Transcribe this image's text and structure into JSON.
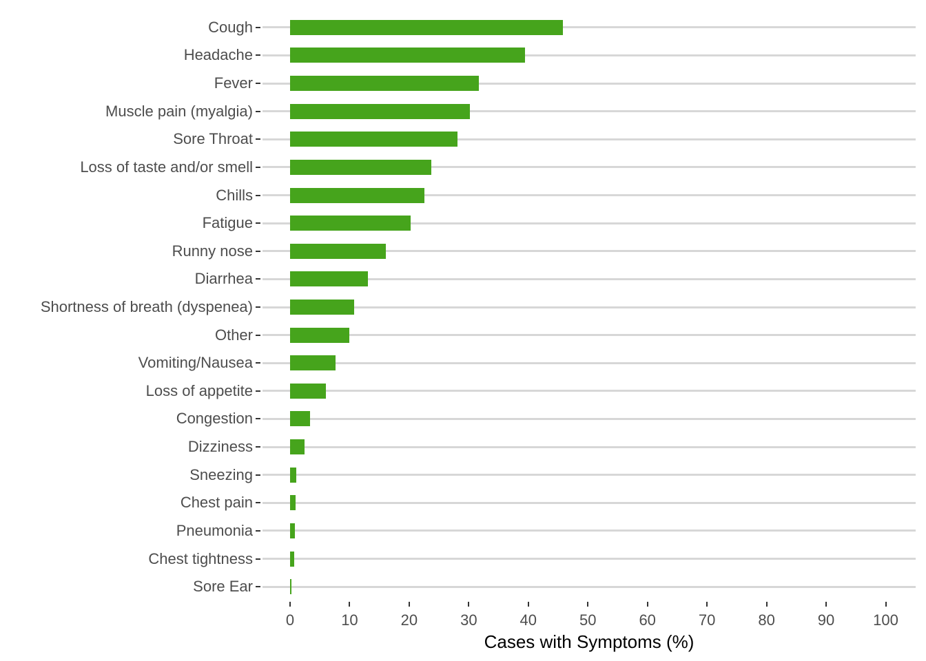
{
  "chart_data": {
    "type": "bar",
    "orientation": "horizontal",
    "title": "",
    "xlabel": "Cases with Symptoms (%)",
    "ylabel": "",
    "categories": [
      "Cough",
      "Headache",
      "Fever",
      "Muscle pain (myalgia)",
      "Sore Throat",
      "Loss of taste and/or smell",
      "Chills",
      "Fatigue",
      "Runny nose",
      "Diarrhea",
      "Shortness of breath (dyspenea)",
      "Other",
      "Vomiting/Nausea",
      "Loss of appetite",
      "Congestion",
      "Dizziness",
      "Sneezing",
      "Chest pain",
      "Pneumonia",
      "Chest tightness",
      "Sore Ear"
    ],
    "values": [
      45.8,
      39.4,
      31.7,
      30.2,
      28.1,
      23.7,
      22.6,
      20.3,
      16.1,
      13.1,
      10.7,
      9.9,
      7.6,
      6.0,
      3.4,
      2.4,
      1.0,
      0.9,
      0.8,
      0.7,
      0.2
    ],
    "xticks": [
      "0",
      "10",
      "20",
      "30",
      "40",
      "50",
      "60",
      "70",
      "80",
      "90",
      "100"
    ],
    "xlim": [
      0,
      100
    ],
    "grid": "horizontal-major-only",
    "legend": "none",
    "colors": {
      "bar": "#46a41c",
      "gridline": "#d7d7d7",
      "axis_text": "#4d4d4d",
      "tick_mark": "#333333",
      "axis_title": "#000000",
      "background": "#ffffff"
    }
  }
}
